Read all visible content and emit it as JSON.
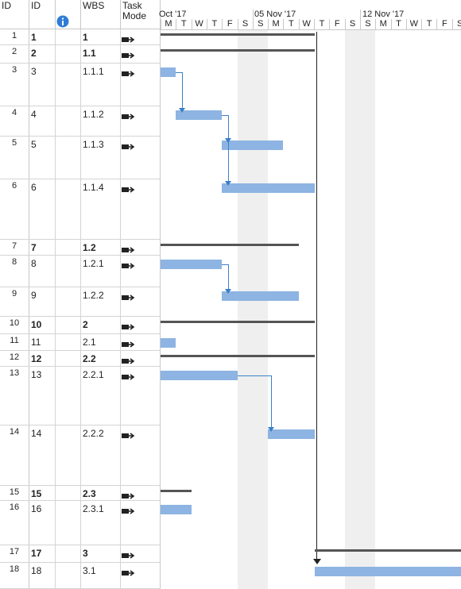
{
  "columns": {
    "row_header": "ID",
    "id": "ID",
    "indicators_icon": "info-icon",
    "wbs": "WBS",
    "task_mode_line1": "Task",
    "task_mode_line2": "Mode"
  },
  "timeline": {
    "weeks": [
      "Oct '17",
      "05 Nov '17",
      "12 Nov '17"
    ],
    "days": [
      "M",
      "T",
      "W",
      "T",
      "F",
      "S",
      "S",
      "M",
      "T",
      "W",
      "T",
      "F",
      "S",
      "S",
      "M",
      "T",
      "W",
      "T",
      "F",
      "S"
    ]
  },
  "rows": [
    {
      "num": "1",
      "id": "1",
      "wbs": "1",
      "bold": true
    },
    {
      "num": "2",
      "id": "2",
      "wbs": "1.1",
      "bold": true
    },
    {
      "num": "3",
      "id": "3",
      "wbs": "1.1.1",
      "bold": false
    },
    {
      "num": "4",
      "id": "4",
      "wbs": "1.1.2",
      "bold": false
    },
    {
      "num": "5",
      "id": "5",
      "wbs": "1.1.3",
      "bold": false
    },
    {
      "num": "6",
      "id": "6",
      "wbs": "1.1.4",
      "bold": false
    },
    {
      "num": "7",
      "id": "7",
      "wbs": "1.2",
      "bold": true
    },
    {
      "num": "8",
      "id": "8",
      "wbs": "1.2.1",
      "bold": false
    },
    {
      "num": "9",
      "id": "9",
      "wbs": "1.2.2",
      "bold": false
    },
    {
      "num": "10",
      "id": "10",
      "wbs": "2",
      "bold": true
    },
    {
      "num": "11",
      "id": "11",
      "wbs": "2.1",
      "bold": false
    },
    {
      "num": "12",
      "id": "12",
      "wbs": "2.2",
      "bold": true
    },
    {
      "num": "13",
      "id": "13",
      "wbs": "2.2.1",
      "bold": false
    },
    {
      "num": "14",
      "id": "14",
      "wbs": "2.2.2",
      "bold": false
    },
    {
      "num": "15",
      "id": "15",
      "wbs": "2.3",
      "bold": true
    },
    {
      "num": "16",
      "id": "16",
      "wbs": "2.3.1",
      "bold": false
    },
    {
      "num": "17",
      "id": "17",
      "wbs": "3",
      "bold": true
    },
    {
      "num": "18",
      "id": "18",
      "wbs": "3.1",
      "bold": false
    }
  ],
  "colors": {
    "task_bar": "#8db4e2",
    "summary_bar": "#555555",
    "link": "#3a7fc8",
    "weekend": "#efefef"
  }
}
